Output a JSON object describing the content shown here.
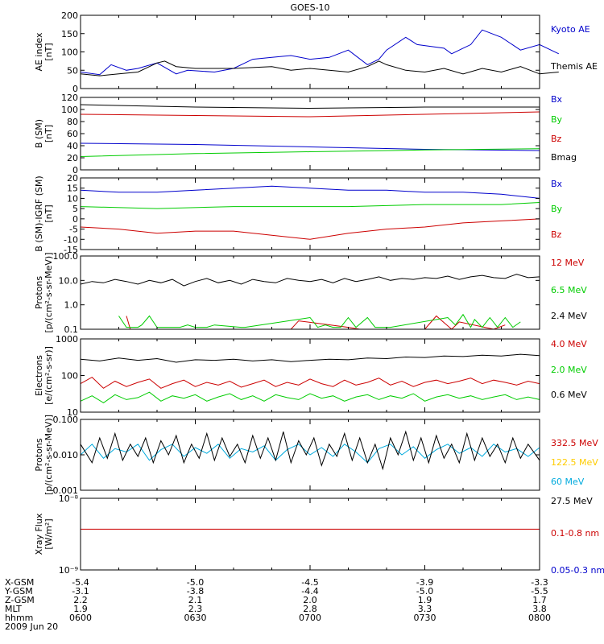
{
  "title": "GOES-10",
  "time_ticks": [
    "0600",
    "0630",
    "0700",
    "0730",
    "0800"
  ],
  "ephemeris": {
    "rows": [
      {
        "label": "X-GSM",
        "values": [
          "-5.4",
          "-5.0",
          "-4.5",
          "-3.9",
          "-3.3"
        ]
      },
      {
        "label": "Y-GSM",
        "values": [
          "-3.1",
          "-3.8",
          "-4.4",
          "-5.0",
          "-5.5"
        ]
      },
      {
        "label": "Z-GSM",
        "values": [
          "2.2",
          "2.1",
          "2.0",
          "1.9",
          "1.7"
        ]
      },
      {
        "label": "MLT",
        "values": [
          "1.9",
          "2.3",
          "2.8",
          "3.3",
          "3.8"
        ]
      },
      {
        "label": "hhmm",
        "values": [
          "0600",
          "0630",
          "0700",
          "0730",
          "0800"
        ]
      }
    ],
    "date": "2009 Jun 20"
  },
  "chart_data": [
    {
      "type": "line",
      "id": "ae",
      "ylabel": [
        "AE index",
        "[nT]"
      ],
      "ylim": [
        0,
        200
      ],
      "yticks": [
        0,
        50,
        100,
        150,
        200
      ],
      "log": false,
      "series": [
        {
          "name": "Kyoto AE",
          "color": "#0000cc",
          "x": [
            0,
            5,
            8,
            12,
            15,
            20,
            25,
            28,
            35,
            40,
            45,
            50,
            55,
            60,
            65,
            70,
            75,
            78,
            80,
            85,
            88,
            95,
            97,
            100,
            102,
            105,
            110,
            115,
            120,
            125
          ],
          "y": [
            45,
            38,
            65,
            50,
            55,
            70,
            40,
            50,
            45,
            55,
            80,
            85,
            90,
            80,
            85,
            105,
            65,
            80,
            105,
            140,
            120,
            110,
            95,
            110,
            120,
            160,
            140,
            105,
            120,
            95
          ]
        },
        {
          "name": "Themis AE",
          "color": "#000000",
          "x": [
            0,
            5,
            10,
            15,
            20,
            22,
            25,
            30,
            40,
            50,
            55,
            60,
            70,
            75,
            78,
            80,
            85,
            90,
            95,
            100,
            105,
            110,
            115,
            120,
            125
          ],
          "y": [
            40,
            35,
            40,
            45,
            70,
            75,
            60,
            55,
            55,
            60,
            50,
            55,
            45,
            60,
            75,
            65,
            50,
            45,
            55,
            40,
            55,
            45,
            60,
            40,
            45
          ]
        }
      ]
    },
    {
      "type": "line",
      "id": "bfield",
      "ylabel": [
        "B (SM)",
        "[nT]"
      ],
      "ylim": [
        0,
        120
      ],
      "yticks": [
        0,
        20,
        40,
        60,
        80,
        100,
        120
      ],
      "log": false,
      "series": [
        {
          "name": "Bx",
          "color": "#0000cc",
          "x": [
            0,
            30,
            60,
            90,
            120
          ],
          "y": [
            44,
            42,
            38,
            34,
            32
          ]
        },
        {
          "name": "By",
          "color": "#00cc00",
          "x": [
            0,
            30,
            60,
            90,
            120
          ],
          "y": [
            22,
            27,
            30,
            33,
            35
          ]
        },
        {
          "name": "Bz",
          "color": "#cc0000",
          "x": [
            0,
            30,
            60,
            90,
            120
          ],
          "y": [
            92,
            90,
            88,
            92,
            96
          ]
        },
        {
          "name": "Bmag",
          "color": "#000000",
          "x": [
            0,
            30,
            60,
            90,
            120
          ],
          "y": [
            108,
            104,
            102,
            104,
            104
          ]
        }
      ]
    },
    {
      "type": "line",
      "id": "bdiff",
      "ylabel": [
        "B (SM)-IGRF (SM)",
        "[nT]"
      ],
      "ylim": [
        -15,
        20
      ],
      "yticks": [
        -15,
        -10,
        -5,
        0,
        5,
        10,
        15,
        20
      ],
      "log": false,
      "series": [
        {
          "name": "Bx",
          "color": "#0000cc",
          "x": [
            0,
            10,
            20,
            30,
            40,
            50,
            60,
            70,
            80,
            90,
            100,
            110,
            120
          ],
          "y": [
            14,
            13,
            13,
            14,
            15,
            16,
            15,
            14,
            14,
            13,
            13,
            12,
            10
          ]
        },
        {
          "name": "By",
          "color": "#00cc00",
          "x": [
            0,
            20,
            40,
            60,
            70,
            90,
            110,
            120
          ],
          "y": [
            6,
            5,
            6,
            6,
            6,
            7,
            7,
            8
          ]
        },
        {
          "name": "Bz",
          "color": "#cc0000",
          "x": [
            0,
            10,
            20,
            30,
            40,
            50,
            60,
            70,
            80,
            90,
            100,
            110,
            120
          ],
          "y": [
            -4,
            -5,
            -7,
            -6,
            -6,
            -8,
            -10,
            -7,
            -5,
            -4,
            -2,
            -1,
            0
          ]
        }
      ]
    },
    {
      "type": "line",
      "id": "protons_mev",
      "ylabel": [
        "Protons",
        "[p/(cm²-s-sr-MeV)]"
      ],
      "ylim": [
        0.1,
        100
      ],
      "yticks": [
        0.1,
        1,
        10,
        100
      ],
      "ytick_labels": [
        "0.1",
        "1.0",
        "10.0",
        "100.0"
      ],
      "log": true,
      "series": [
        {
          "name": "12 MeV",
          "color": "#cc0000",
          "x": [
            12,
            13,
            55,
            57,
            70,
            73,
            90,
            93,
            97,
            99,
            108,
            111
          ],
          "y": [
            0.35,
            0.1,
            0.1,
            0.22,
            0.12,
            0.1,
            0.1,
            0.35,
            0.1,
            0.2,
            0.1,
            0.15
          ]
        },
        {
          "name": "6.5 MeV",
          "color": "#00cc00",
          "x": [
            10,
            12,
            15,
            16,
            18,
            20,
            26,
            28,
            30,
            33,
            35,
            42,
            43,
            60,
            62,
            64,
            66,
            68,
            70,
            72,
            75,
            77,
            79,
            81,
            96,
            98,
            100,
            102,
            103,
            105,
            107,
            109,
            111,
            113,
            115
          ],
          "y": [
            0.35,
            0.12,
            0.12,
            0.15,
            0.35,
            0.12,
            0.12,
            0.15,
            0.12,
            0.12,
            0.15,
            0.12,
            0.12,
            0.3,
            0.12,
            0.15,
            0.12,
            0.12,
            0.3,
            0.12,
            0.3,
            0.12,
            0.12,
            0.12,
            0.3,
            0.15,
            0.4,
            0.12,
            0.25,
            0.12,
            0.3,
            0.12,
            0.3,
            0.12,
            0.2
          ]
        },
        {
          "name": "2.4 MeV",
          "color": "#000000",
          "x": [
            0,
            3,
            6,
            9,
            12,
            15,
            18,
            21,
            24,
            27,
            30,
            33,
            36,
            39,
            42,
            45,
            48,
            51,
            54,
            57,
            60,
            63,
            66,
            69,
            72,
            75,
            78,
            81,
            84,
            87,
            90,
            93,
            96,
            99,
            102,
            105,
            108,
            111,
            114,
            117,
            120
          ],
          "y": [
            7,
            9,
            8,
            11,
            9,
            7,
            10,
            8,
            11,
            6,
            9,
            12,
            8,
            10,
            7,
            11,
            9,
            8,
            12,
            10,
            9,
            11,
            8,
            12,
            9,
            11,
            14,
            10,
            12,
            11,
            13,
            12,
            15,
            11,
            14,
            16,
            13,
            12,
            18,
            13,
            14
          ]
        }
      ]
    },
    {
      "type": "line",
      "id": "electrons",
      "ylabel": [
        "Electrons",
        "[e/(cm²-s-sr)]"
      ],
      "ylim": [
        10,
        1000
      ],
      "yticks": [
        10,
        100,
        1000
      ],
      "ytick_labels": [
        "10",
        "100",
        "1000"
      ],
      "log": true,
      "series": [
        {
          "name": "4.0 MeV",
          "color": "#cc0000",
          "x": [
            0,
            3,
            6,
            9,
            12,
            15,
            18,
            21,
            24,
            27,
            30,
            33,
            36,
            39,
            42,
            45,
            48,
            51,
            54,
            57,
            60,
            63,
            66,
            69,
            72,
            75,
            78,
            81,
            84,
            87,
            90,
            93,
            96,
            99,
            102,
            105,
            108,
            111,
            114,
            117,
            120
          ],
          "y": [
            60,
            90,
            45,
            70,
            50,
            65,
            80,
            45,
            60,
            75,
            50,
            65,
            55,
            70,
            48,
            60,
            75,
            50,
            65,
            55,
            80,
            60,
            50,
            75,
            55,
            65,
            85,
            55,
            70,
            50,
            65,
            75,
            60,
            70,
            85,
            60,
            75,
            65,
            55,
            70,
            60
          ]
        },
        {
          "name": "2.0 MeV",
          "color": "#00cc00",
          "x": [
            0,
            3,
            6,
            9,
            12,
            15,
            18,
            21,
            24,
            27,
            30,
            33,
            36,
            39,
            42,
            45,
            48,
            51,
            54,
            57,
            60,
            63,
            66,
            69,
            72,
            75,
            78,
            81,
            84,
            87,
            90,
            93,
            96,
            99,
            102,
            105,
            108,
            111,
            114,
            117,
            120
          ],
          "y": [
            20,
            28,
            18,
            30,
            22,
            25,
            35,
            20,
            28,
            24,
            30,
            20,
            26,
            32,
            22,
            28,
            20,
            30,
            25,
            22,
            32,
            24,
            28,
            20,
            26,
            30,
            22,
            28,
            24,
            32,
            20,
            26,
            30,
            24,
            28,
            22,
            26,
            30,
            22,
            26,
            22
          ]
        },
        {
          "name": "0.6 MeV",
          "color": "#000000",
          "x": [
            0,
            5,
            10,
            15,
            20,
            25,
            30,
            35,
            40,
            45,
            50,
            55,
            60,
            65,
            70,
            75,
            80,
            85,
            90,
            95,
            100,
            105,
            110,
            115,
            120
          ],
          "y": [
            280,
            250,
            300,
            260,
            290,
            230,
            270,
            260,
            280,
            250,
            270,
            240,
            260,
            280,
            270,
            300,
            290,
            320,
            310,
            340,
            330,
            360,
            340,
            380,
            350
          ]
        }
      ]
    },
    {
      "type": "line",
      "id": "protons_high",
      "ylabel": [
        "Protons",
        "[p/(cm²-s-sr-MeV)]"
      ],
      "ylim": [
        0.001,
        0.1
      ],
      "yticks": [
        0.001,
        0.01,
        0.1
      ],
      "ytick_labels": [
        "0.001",
        "0.010",
        "0.100"
      ],
      "log": true,
      "series": [
        {
          "name": "332.5 MeV",
          "color": "#cc0000",
          "x": [],
          "y": []
        },
        {
          "name": "122.5 MeV",
          "color": "#ffcc00",
          "x": [],
          "y": []
        },
        {
          "name": "60 MeV",
          "color": "#00aadd",
          "x": [
            0,
            3,
            6,
            9,
            12,
            15,
            18,
            21,
            24,
            27,
            30,
            33,
            36,
            39,
            42,
            45,
            48,
            51,
            54,
            57,
            60,
            63,
            66,
            69,
            72,
            75,
            78,
            81,
            84,
            87,
            90,
            93,
            96,
            99,
            102,
            105,
            108,
            111,
            114,
            117,
            120
          ],
          "y": [
            0.01,
            0.02,
            0.008,
            0.015,
            0.012,
            0.02,
            0.007,
            0.014,
            0.02,
            0.009,
            0.016,
            0.011,
            0.02,
            0.008,
            0.015,
            0.012,
            0.018,
            0.007,
            0.014,
            0.02,
            0.01,
            0.016,
            0.009,
            0.02,
            0.012,
            0.006,
            0.015,
            0.02,
            0.01,
            0.017,
            0.008,
            0.014,
            0.02,
            0.011,
            0.016,
            0.009,
            0.02,
            0.012,
            0.015,
            0.009,
            0.016
          ]
        },
        {
          "name": "27.5 MeV",
          "color": "#000000",
          "x": [
            0,
            3,
            5,
            7,
            9,
            11,
            13,
            15,
            17,
            19,
            21,
            23,
            25,
            27,
            29,
            31,
            33,
            35,
            37,
            39,
            41,
            43,
            45,
            47,
            49,
            51,
            53,
            55,
            57,
            59,
            61,
            63,
            65,
            67,
            69,
            71,
            73,
            75,
            77,
            79,
            81,
            83,
            85,
            87,
            89,
            91,
            93,
            95,
            97,
            99,
            101,
            103,
            105,
            107,
            109,
            111,
            113,
            115,
            117,
            120
          ],
          "y": [
            0.02,
            0.006,
            0.03,
            0.008,
            0.04,
            0.007,
            0.02,
            0.009,
            0.03,
            0.006,
            0.025,
            0.01,
            0.035,
            0.006,
            0.02,
            0.008,
            0.04,
            0.007,
            0.03,
            0.009,
            0.02,
            0.006,
            0.035,
            0.008,
            0.03,
            0.007,
            0.045,
            0.006,
            0.025,
            0.01,
            0.03,
            0.005,
            0.02,
            0.009,
            0.04,
            0.007,
            0.03,
            0.006,
            0.02,
            0.004,
            0.03,
            0.01,
            0.045,
            0.007,
            0.03,
            0.006,
            0.035,
            0.008,
            0.02,
            0.006,
            0.04,
            0.007,
            0.03,
            0.009,
            0.02,
            0.006,
            0.03,
            0.008,
            0.02,
            0.007
          ]
        }
      ]
    },
    {
      "type": "line",
      "id": "xray",
      "ylabel": [
        "Xray  Flux",
        "[W/m²]"
      ],
      "ylim": [
        1e-09,
        1e-08
      ],
      "yticks": [
        1e-09,
        1e-08
      ],
      "ytick_labels": [
        "10⁻⁹",
        "10⁻⁸"
      ],
      "log": true,
      "series": [
        {
          "name": "0.1-0.8 nm",
          "color": "#cc0000",
          "x": [
            0,
            120
          ],
          "y": [
            3.7e-09,
            3.7e-09
          ]
        },
        {
          "name": "0.05-0.3 nm",
          "color": "#0000cc",
          "x": [],
          "y": []
        }
      ]
    }
  ]
}
